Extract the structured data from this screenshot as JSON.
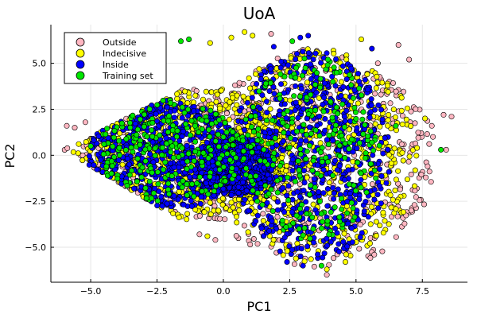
{
  "chart_data": {
    "type": "scatter",
    "title": "UoA",
    "xlabel": "PC1",
    "ylabel": "PC2",
    "xlim": [
      -6.5,
      9.2
    ],
    "ylim": [
      -6.9,
      7.1
    ],
    "xticks": [
      -5.0,
      -2.5,
      0.0,
      2.5,
      5.0,
      7.5
    ],
    "xtick_labels": [
      "−5.0",
      "−2.5",
      "0.0",
      "2.5",
      "5.0",
      "7.5"
    ],
    "yticks": [
      -5.0,
      -2.5,
      0.0,
      2.5,
      5.0
    ],
    "ytick_labels": [
      "−5.0",
      "−2.5",
      "0.0",
      "2.5",
      "5.0"
    ],
    "grid": true,
    "legend_position": "top-left",
    "series": [
      {
        "name": "Outside",
        "color": "#ffb6c1",
        "regions": [
          {
            "cx": -1.5,
            "cy": 0.0,
            "rx": 4.6,
            "ry": 4.0
          },
          {
            "cx": 3.6,
            "cy": -0.2,
            "rx": 4.5,
            "ry": 6.0
          }
        ],
        "points": [
          {
            "x": -5.9,
            "y": 1.6
          },
          {
            "x": -5.6,
            "y": 1.5
          },
          {
            "x": -5.2,
            "y": 1.8
          },
          {
            "x": 8.3,
            "y": 2.2
          },
          {
            "x": 8.6,
            "y": 2.1
          },
          {
            "x": 8.4,
            "y": 0.3
          },
          {
            "x": 7.9,
            "y": 1.0
          },
          {
            "x": 7.7,
            "y": -0.6
          },
          {
            "x": 3.9,
            "y": -6.5
          },
          {
            "x": 2.0,
            "y": -5.3
          },
          {
            "x": -0.3,
            "y": -4.6
          },
          {
            "x": 7.0,
            "y": 5.2
          },
          {
            "x": 6.6,
            "y": 6.0
          },
          {
            "x": -0.9,
            "y": -4.3
          },
          {
            "x": 1.8,
            "y": 6.6
          }
        ]
      },
      {
        "name": "Indecisive",
        "color": "#ffff00",
        "regions": [
          {
            "cx": -1.7,
            "cy": 0.2,
            "rx": 4.2,
            "ry": 3.7
          },
          {
            "cx": 3.5,
            "cy": 0.0,
            "rx": 3.9,
            "ry": 5.8
          }
        ],
        "points": [
          {
            "x": 0.8,
            "y": 6.7
          },
          {
            "x": 1.1,
            "y": 6.5
          },
          {
            "x": 0.3,
            "y": 6.4
          },
          {
            "x": 7.6,
            "y": 2.0
          },
          {
            "x": 7.3,
            "y": 0.4
          },
          {
            "x": 5.2,
            "y": 6.3
          },
          {
            "x": -0.5,
            "y": 6.1
          },
          {
            "x": 3.9,
            "y": -6.2
          },
          {
            "x": 4.6,
            "y": -5.8
          },
          {
            "x": -0.6,
            "y": -4.4
          }
        ]
      },
      {
        "name": "Inside",
        "color": "#0000ff",
        "regions": [
          {
            "cx": -2.2,
            "cy": 0.0,
            "rx": 2.9,
            "ry": 3.0
          },
          {
            "cx": 3.3,
            "cy": 0.0,
            "rx": 3.0,
            "ry": 5.7
          },
          {
            "cx": 0.5,
            "cy": -0.6,
            "rx": 1.4,
            "ry": 1.6
          }
        ],
        "points": [
          {
            "x": 2.9,
            "y": 6.4
          },
          {
            "x": 3.2,
            "y": 6.5
          },
          {
            "x": 1.9,
            "y": 5.9
          },
          {
            "x": 3.0,
            "y": -6.0
          },
          {
            "x": 2.4,
            "y": -5.8
          },
          {
            "x": 5.6,
            "y": 5.8
          }
        ]
      },
      {
        "name": "Training set",
        "color": "#00e600",
        "regions": [
          {
            "cx": -2.0,
            "cy": 0.2,
            "rx": 2.8,
            "ry": 2.8
          },
          {
            "cx": 3.3,
            "cy": 0.4,
            "rx": 2.6,
            "ry": 5.0
          }
        ],
        "points": [
          {
            "x": 8.2,
            "y": 0.3
          },
          {
            "x": -1.6,
            "y": 6.2
          },
          {
            "x": -1.3,
            "y": 6.3
          },
          {
            "x": 2.6,
            "y": 6.2
          },
          {
            "x": 3.7,
            "y": -6.0
          },
          {
            "x": 5.6,
            "y": 0.7
          },
          {
            "x": -5.0,
            "y": 0.5
          },
          {
            "x": -4.5,
            "y": 0.6
          },
          {
            "x": 6.5,
            "y": 1.6
          }
        ]
      }
    ]
  }
}
